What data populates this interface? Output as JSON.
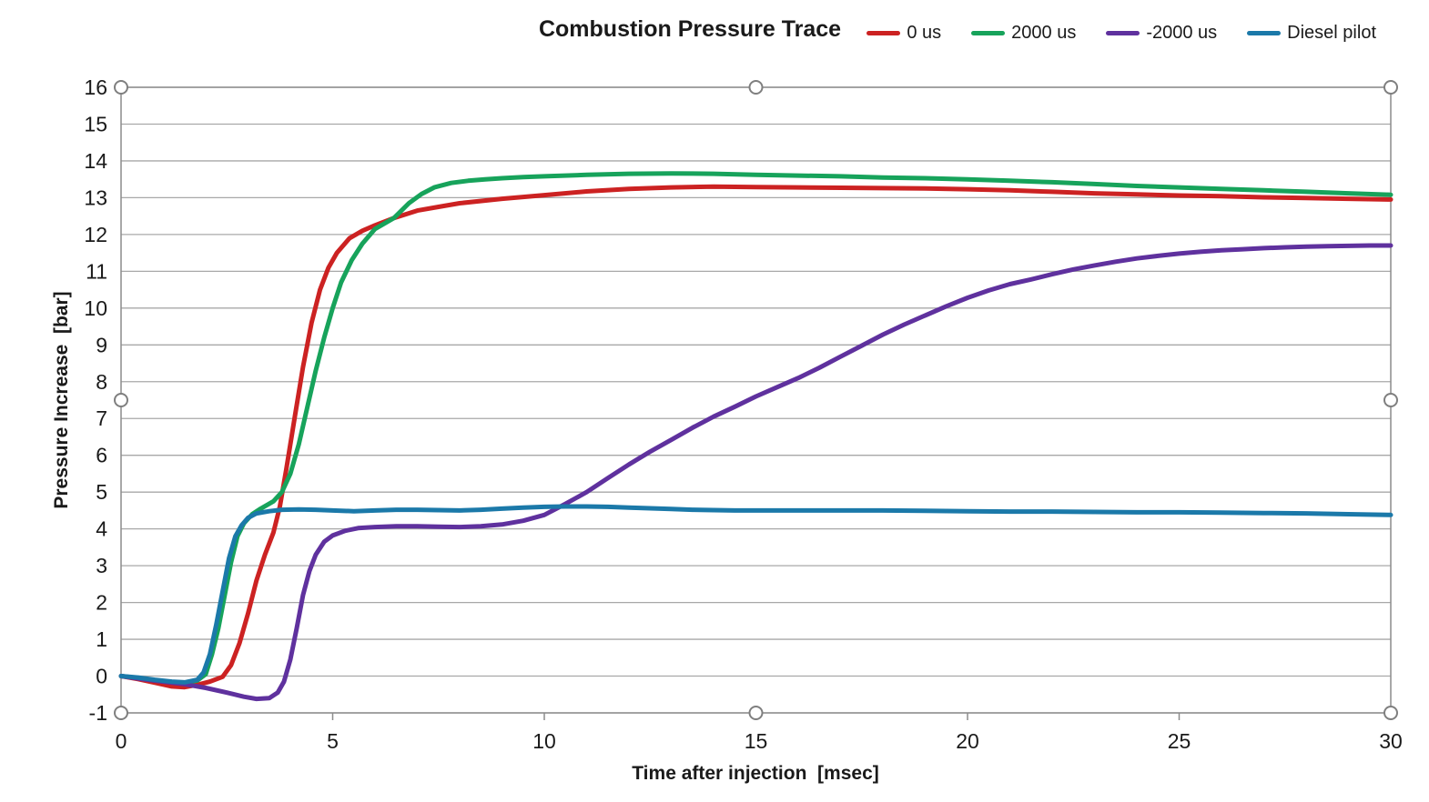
{
  "chart_data": {
    "type": "line",
    "title": "Combustion Pressure Trace",
    "xlabel": "Time after injection  [msec]",
    "ylabel": "Pressure Increase  [bar]",
    "xlim": [
      0,
      30
    ],
    "ylim": [
      -1,
      16
    ],
    "x_ticks": [
      0,
      5,
      10,
      15,
      20,
      25,
      30
    ],
    "y_ticks": [
      -1,
      0,
      1,
      2,
      3,
      4,
      5,
      6,
      7,
      8,
      9,
      10,
      11,
      12,
      13,
      14,
      15,
      16
    ],
    "grid": "horizontal-only",
    "legend_position": "top-right",
    "axis_color": "#8c8c8c",
    "grid_color": "#a8a8a8",
    "handle_stroke": "#7f7f7f",
    "selection_handles": true,
    "series": [
      {
        "name": "0 us",
        "color": "#cc2222",
        "points": [
          [
            0,
            0
          ],
          [
            0.4,
            -0.08
          ],
          [
            0.8,
            -0.18
          ],
          [
            1.2,
            -0.28
          ],
          [
            1.5,
            -0.3
          ],
          [
            1.8,
            -0.24
          ],
          [
            2.1,
            -0.15
          ],
          [
            2.4,
            -0.02
          ],
          [
            2.6,
            0.3
          ],
          [
            2.8,
            0.9
          ],
          [
            3.0,
            1.7
          ],
          [
            3.2,
            2.6
          ],
          [
            3.4,
            3.3
          ],
          [
            3.6,
            3.9
          ],
          [
            3.75,
            4.6
          ],
          [
            3.9,
            5.6
          ],
          [
            4.1,
            7.0
          ],
          [
            4.3,
            8.4
          ],
          [
            4.5,
            9.6
          ],
          [
            4.7,
            10.5
          ],
          [
            4.9,
            11.1
          ],
          [
            5.1,
            11.5
          ],
          [
            5.4,
            11.9
          ],
          [
            5.7,
            12.1
          ],
          [
            6.0,
            12.25
          ],
          [
            6.45,
            12.45
          ],
          [
            7,
            12.65
          ],
          [
            7.5,
            12.75
          ],
          [
            8,
            12.85
          ],
          [
            9,
            12.97
          ],
          [
            10,
            13.07
          ],
          [
            11,
            13.17
          ],
          [
            12,
            13.24
          ],
          [
            13,
            13.28
          ],
          [
            14,
            13.3
          ],
          [
            15,
            13.29
          ],
          [
            16,
            13.28
          ],
          [
            17,
            13.27
          ],
          [
            18,
            13.26
          ],
          [
            19,
            13.25
          ],
          [
            20,
            13.23
          ],
          [
            21,
            13.2
          ],
          [
            22,
            13.16
          ],
          [
            23,
            13.12
          ],
          [
            24,
            13.09
          ],
          [
            25,
            13.06
          ],
          [
            26,
            13.04
          ],
          [
            27,
            13.01
          ],
          [
            28,
            12.99
          ],
          [
            29,
            12.97
          ],
          [
            30,
            12.95
          ]
        ]
      },
      {
        "name": "2000 us",
        "color": "#17a35b",
        "points": [
          [
            0,
            0
          ],
          [
            0.4,
            -0.05
          ],
          [
            0.8,
            -0.12
          ],
          [
            1.2,
            -0.17
          ],
          [
            1.5,
            -0.18
          ],
          [
            1.8,
            -0.12
          ],
          [
            2.0,
            0.05
          ],
          [
            2.15,
            0.6
          ],
          [
            2.3,
            1.3
          ],
          [
            2.45,
            2.2
          ],
          [
            2.6,
            3.1
          ],
          [
            2.75,
            3.8
          ],
          [
            2.9,
            4.15
          ],
          [
            3.1,
            4.4
          ],
          [
            3.3,
            4.55
          ],
          [
            3.6,
            4.75
          ],
          [
            3.8,
            5.0
          ],
          [
            4.0,
            5.5
          ],
          [
            4.2,
            6.3
          ],
          [
            4.4,
            7.3
          ],
          [
            4.6,
            8.3
          ],
          [
            4.8,
            9.2
          ],
          [
            5.0,
            10.0
          ],
          [
            5.2,
            10.7
          ],
          [
            5.45,
            11.3
          ],
          [
            5.7,
            11.75
          ],
          [
            6.0,
            12.15
          ],
          [
            6.45,
            12.45
          ],
          [
            6.8,
            12.85
          ],
          [
            7.1,
            13.1
          ],
          [
            7.4,
            13.28
          ],
          [
            7.8,
            13.4
          ],
          [
            8.2,
            13.46
          ],
          [
            8.6,
            13.5
          ],
          [
            9,
            13.53
          ],
          [
            9.5,
            13.56
          ],
          [
            10,
            13.58
          ],
          [
            11,
            13.62
          ],
          [
            12,
            13.65
          ],
          [
            13,
            13.66
          ],
          [
            14,
            13.65
          ],
          [
            15,
            13.62
          ],
          [
            16,
            13.6
          ],
          [
            17,
            13.58
          ],
          [
            18,
            13.55
          ],
          [
            19,
            13.53
          ],
          [
            20,
            13.5
          ],
          [
            21,
            13.46
          ],
          [
            22,
            13.42
          ],
          [
            23,
            13.37
          ],
          [
            24,
            13.32
          ],
          [
            25,
            13.28
          ],
          [
            26,
            13.24
          ],
          [
            27,
            13.2
          ],
          [
            28,
            13.16
          ],
          [
            29,
            13.12
          ],
          [
            30,
            13.08
          ]
        ]
      },
      {
        "name": "-2000 us",
        "color": "#5f319e",
        "points": [
          [
            0,
            0
          ],
          [
            0.5,
            -0.08
          ],
          [
            1.0,
            -0.15
          ],
          [
            1.5,
            -0.22
          ],
          [
            2.0,
            -0.32
          ],
          [
            2.5,
            -0.45
          ],
          [
            2.9,
            -0.56
          ],
          [
            3.2,
            -0.62
          ],
          [
            3.5,
            -0.6
          ],
          [
            3.7,
            -0.45
          ],
          [
            3.85,
            -0.15
          ],
          [
            4.0,
            0.45
          ],
          [
            4.15,
            1.3
          ],
          [
            4.3,
            2.2
          ],
          [
            4.45,
            2.85
          ],
          [
            4.6,
            3.3
          ],
          [
            4.8,
            3.65
          ],
          [
            5.0,
            3.82
          ],
          [
            5.3,
            3.95
          ],
          [
            5.6,
            4.02
          ],
          [
            6.0,
            4.05
          ],
          [
            6.5,
            4.07
          ],
          [
            7.0,
            4.07
          ],
          [
            7.5,
            4.06
          ],
          [
            8.0,
            4.05
          ],
          [
            8.5,
            4.07
          ],
          [
            9.0,
            4.12
          ],
          [
            9.5,
            4.22
          ],
          [
            10.0,
            4.38
          ],
          [
            10.5,
            4.68
          ],
          [
            11.0,
            5.0
          ],
          [
            11.5,
            5.38
          ],
          [
            12.0,
            5.75
          ],
          [
            12.5,
            6.1
          ],
          [
            13.0,
            6.42
          ],
          [
            13.5,
            6.75
          ],
          [
            14.0,
            7.05
          ],
          [
            14.5,
            7.32
          ],
          [
            15.0,
            7.6
          ],
          [
            15.5,
            7.85
          ],
          [
            16.0,
            8.1
          ],
          [
            16.5,
            8.38
          ],
          [
            17.0,
            8.68
          ],
          [
            17.5,
            8.98
          ],
          [
            18.0,
            9.28
          ],
          [
            18.5,
            9.55
          ],
          [
            19.0,
            9.8
          ],
          [
            19.5,
            10.05
          ],
          [
            20.0,
            10.28
          ],
          [
            20.5,
            10.48
          ],
          [
            21.0,
            10.65
          ],
          [
            21.5,
            10.78
          ],
          [
            22.0,
            10.92
          ],
          [
            22.5,
            11.05
          ],
          [
            23.0,
            11.16
          ],
          [
            23.5,
            11.26
          ],
          [
            24.0,
            11.35
          ],
          [
            24.5,
            11.42
          ],
          [
            25.0,
            11.48
          ],
          [
            25.5,
            11.53
          ],
          [
            26.0,
            11.57
          ],
          [
            26.5,
            11.6
          ],
          [
            27.0,
            11.63
          ],
          [
            27.5,
            11.65
          ],
          [
            28.0,
            11.67
          ],
          [
            28.5,
            11.68
          ],
          [
            29.0,
            11.69
          ],
          [
            29.5,
            11.7
          ],
          [
            30.0,
            11.7
          ]
        ]
      },
      {
        "name": "Diesel pilot",
        "color": "#1b79a9",
        "points": [
          [
            0,
            0
          ],
          [
            0.4,
            -0.04
          ],
          [
            0.8,
            -0.1
          ],
          [
            1.2,
            -0.15
          ],
          [
            1.5,
            -0.17
          ],
          [
            1.8,
            -0.1
          ],
          [
            1.95,
            0.1
          ],
          [
            2.1,
            0.6
          ],
          [
            2.25,
            1.4
          ],
          [
            2.4,
            2.3
          ],
          [
            2.55,
            3.2
          ],
          [
            2.7,
            3.8
          ],
          [
            2.85,
            4.1
          ],
          [
            3.0,
            4.3
          ],
          [
            3.2,
            4.42
          ],
          [
            3.5,
            4.48
          ],
          [
            3.8,
            4.52
          ],
          [
            4.2,
            4.53
          ],
          [
            4.6,
            4.52
          ],
          [
            5.0,
            4.5
          ],
          [
            5.5,
            4.48
          ],
          [
            6.0,
            4.5
          ],
          [
            6.5,
            4.52
          ],
          [
            7.0,
            4.52
          ],
          [
            7.5,
            4.51
          ],
          [
            8.0,
            4.5
          ],
          [
            8.5,
            4.52
          ],
          [
            9.0,
            4.55
          ],
          [
            9.5,
            4.58
          ],
          [
            10.0,
            4.6
          ],
          [
            10.5,
            4.61
          ],
          [
            11.0,
            4.61
          ],
          [
            11.5,
            4.6
          ],
          [
            12.0,
            4.58
          ],
          [
            12.5,
            4.56
          ],
          [
            13.0,
            4.54
          ],
          [
            13.5,
            4.52
          ],
          [
            14.0,
            4.51
          ],
          [
            14.5,
            4.5
          ],
          [
            15.0,
            4.5
          ],
          [
            16,
            4.5
          ],
          [
            17,
            4.5
          ],
          [
            18,
            4.5
          ],
          [
            19,
            4.49
          ],
          [
            20,
            4.48
          ],
          [
            21,
            4.47
          ],
          [
            22,
            4.47
          ],
          [
            23,
            4.46
          ],
          [
            24,
            4.45
          ],
          [
            25,
            4.45
          ],
          [
            26,
            4.44
          ],
          [
            27,
            4.43
          ],
          [
            28,
            4.42
          ],
          [
            29,
            4.4
          ],
          [
            30,
            4.38
          ]
        ]
      }
    ]
  }
}
